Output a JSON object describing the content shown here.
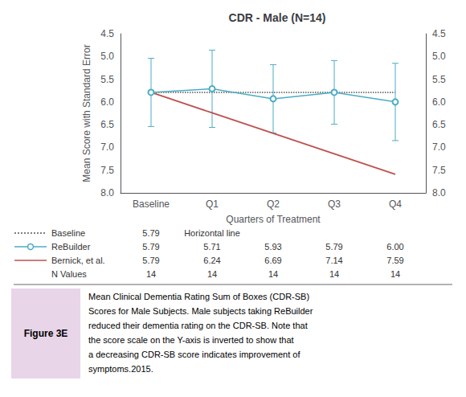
{
  "chart_data": {
    "type": "line",
    "title": "CDR - Male (N=14)",
    "xlabel": "Quarters of Treatment",
    "ylabel": "Mean Score with Standard Error",
    "categories": [
      "Baseline",
      "Q1",
      "Q2",
      "Q3",
      "Q4"
    ],
    "series": [
      {
        "name": "Baseline",
        "type": "hline",
        "value": 5.79,
        "color": "#555555",
        "line_style": "dotted"
      },
      {
        "name": "ReBuilder",
        "values": [
          5.79,
          5.71,
          5.93,
          5.79,
          6.0
        ],
        "errors": [
          0.75,
          0.85,
          0.75,
          0.7,
          0.85
        ],
        "color": "#4bacc6",
        "marker": "circle",
        "line_style": "solid"
      },
      {
        "name": "Bernick, et al.",
        "values": [
          5.79,
          6.24,
          6.69,
          7.14,
          7.59
        ],
        "color": "#c0504d",
        "line_style": "solid"
      }
    ],
    "ylim": [
      8.0,
      4.5
    ],
    "yticks": [
      4.5,
      {
        "value": 5,
        "label": "5.0"
      },
      5.5,
      {
        "value": 6,
        "label": "6.0"
      },
      6.5,
      {
        "value": 7,
        "label": "7.0"
      },
      7.5,
      {
        "value": 8,
        "label": "8.0"
      }
    ],
    "y2lim": [
      8.0,
      4.5
    ],
    "y2ticks": [
      4.5,
      {
        "value": 5,
        "label": "5.0"
      },
      5.5,
      {
        "value": 6,
        "label": "6.0"
      },
      6.5,
      {
        "value": 7,
        "label": "7.0"
      },
      7.5,
      {
        "value": 8,
        "label": "8.0"
      }
    ],
    "grid": false,
    "table": [
      {
        "name": "Baseline",
        "cells": [
          "5.79",
          "Horizontal line"
        ]
      },
      {
        "name": "ReBuilder",
        "cells": [
          "5.79",
          "5.71",
          "5.93",
          "5.79",
          "6.00"
        ]
      },
      {
        "name": "Bernick, et al.",
        "cells": [
          "5.79",
          "6.24",
          "6.69",
          "7.14",
          "7.59"
        ]
      },
      {
        "name": "N Values",
        "cells": [
          "14",
          "14",
          "14",
          "14",
          "14"
        ]
      }
    ],
    "caption": {
      "label": "Figure 3E",
      "lines": [
        "Mean Clinical Dementia Rating Sum of Boxes (CDR-SB)",
        "Scores for Male Subjects. Male subjects taking ReBuilder",
        "reduced their dementia rating on the CDR-SB. Note that",
        "the score scale on the Y-axis is inverted to show that",
        "a decreasing CDR-SB score indicates improvement of",
        "symptoms.2015."
      ]
    }
  }
}
